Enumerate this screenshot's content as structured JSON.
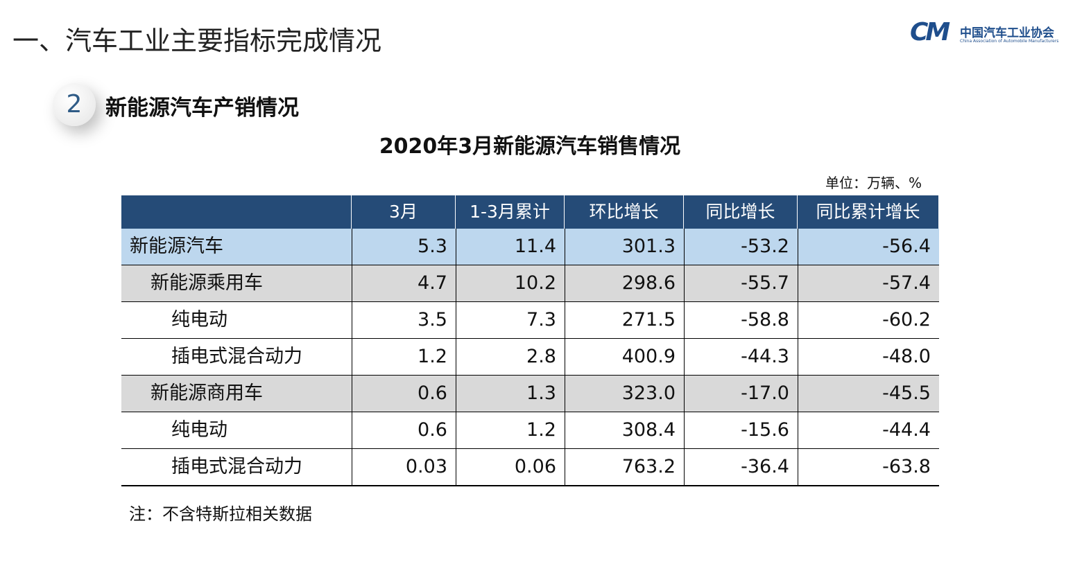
{
  "header": {
    "title": "一、汽车工业主要指标完成情况"
  },
  "logo": {
    "mark": "CM",
    "name": "中国汽车工业协会",
    "english": "China Association of Automobile Manufacturers"
  },
  "section": {
    "number": "2",
    "title": "新能源汽车产销情况"
  },
  "table": {
    "title": "2020年3月新能源汽车销售情况",
    "unit": "单位：万辆、%",
    "columns": [
      "3月",
      "1-3月累计",
      "环比增长",
      "同比增长",
      "同比累计增长"
    ],
    "rows": [
      {
        "label": "新能源汽车",
        "values": [
          "5.3",
          "11.4",
          "301.3",
          "-53.2",
          "-56.4"
        ]
      },
      {
        "label": "新能源乘用车",
        "values": [
          "4.7",
          "10.2",
          "298.6",
          "-55.7",
          "-57.4"
        ]
      },
      {
        "label": "纯电动",
        "values": [
          "3.5",
          "7.3",
          "271.5",
          "-58.8",
          "-60.2"
        ]
      },
      {
        "label": "插电式混合动力",
        "values": [
          "1.2",
          "2.8",
          "400.9",
          "-44.3",
          "-48.0"
        ]
      },
      {
        "label": "新能源商用车",
        "values": [
          "0.6",
          "1.3",
          "323.0",
          "-17.0",
          "-45.5"
        ]
      },
      {
        "label": "纯电动",
        "values": [
          "0.6",
          "1.2",
          "308.4",
          "-15.6",
          "-44.4"
        ]
      },
      {
        "label": "插电式混合动力",
        "values": [
          "0.03",
          "0.06",
          "763.2",
          "-36.4",
          "-63.8"
        ]
      }
    ]
  },
  "note": "注：不含特斯拉相关数据"
}
